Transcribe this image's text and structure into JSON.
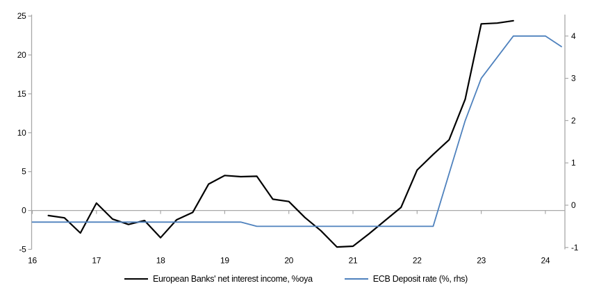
{
  "chart_data": {
    "type": "line",
    "title": "",
    "x_axis": {
      "ticks": [
        16,
        17,
        18,
        19,
        20,
        21,
        22,
        23,
        24
      ],
      "range": [
        16,
        24.3
      ]
    },
    "y_left_axis": {
      "ticks": [
        25,
        20,
        15,
        10,
        5,
        0,
        -5
      ],
      "range": [
        -5,
        25
      ]
    },
    "y_right_axis": {
      "ticks": [
        4,
        3,
        2,
        1,
        0,
        -1
      ],
      "range": [
        -1.05,
        4.5
      ]
    },
    "grid": "zero-line-only",
    "legend_position": "bottom",
    "axis_color": "#A8A8A8",
    "series": [
      {
        "name": "European Banks' net interest income, %oya",
        "axis": "left",
        "color": "#000000",
        "width": 2.2,
        "x": [
          16.25,
          16.5,
          16.75,
          17.0,
          17.25,
          17.5,
          17.75,
          18.0,
          18.25,
          18.5,
          18.75,
          19.0,
          19.25,
          19.5,
          19.75,
          20.0,
          20.25,
          20.5,
          20.75,
          21.0,
          21.25,
          21.5,
          21.75,
          22.0,
          22.25,
          22.5,
          22.75,
          23.0,
          23.25,
          23.5
        ],
        "values": [
          -0.65,
          -0.95,
          -2.9,
          0.95,
          -1.1,
          -1.8,
          -1.3,
          -3.5,
          -1.2,
          -0.25,
          3.4,
          4.5,
          4.35,
          4.4,
          1.45,
          1.15,
          -0.9,
          -2.6,
          -4.7,
          -4.6,
          -3.0,
          -1.3,
          0.4,
          5.2,
          7.2,
          9.1,
          14.3,
          24.0,
          24.1,
          24.4
        ]
      },
      {
        "name": "ECB Deposit rate (%, rhs)",
        "axis": "right",
        "color": "#4E81BD",
        "width": 1.8,
        "x": [
          16.0,
          16.25,
          16.5,
          16.75,
          17.0,
          17.25,
          17.5,
          17.75,
          18.0,
          18.25,
          18.5,
          18.75,
          19.0,
          19.25,
          19.5,
          19.75,
          20.0,
          20.25,
          20.5,
          20.75,
          21.0,
          21.25,
          21.5,
          21.75,
          22.0,
          22.25,
          22.5,
          22.75,
          23.0,
          23.25,
          23.5,
          23.75,
          24.0,
          24.25
        ],
        "values": [
          -0.4,
          -0.4,
          -0.4,
          -0.4,
          -0.4,
          -0.4,
          -0.4,
          -0.4,
          -0.4,
          -0.4,
          -0.4,
          -0.4,
          -0.4,
          -0.4,
          -0.5,
          -0.5,
          -0.5,
          -0.5,
          -0.5,
          -0.5,
          -0.5,
          -0.5,
          -0.5,
          -0.5,
          -0.5,
          -0.5,
          0.75,
          2.0,
          3.0,
          3.5,
          4.0,
          4.0,
          4.0,
          3.75
        ]
      }
    ]
  }
}
